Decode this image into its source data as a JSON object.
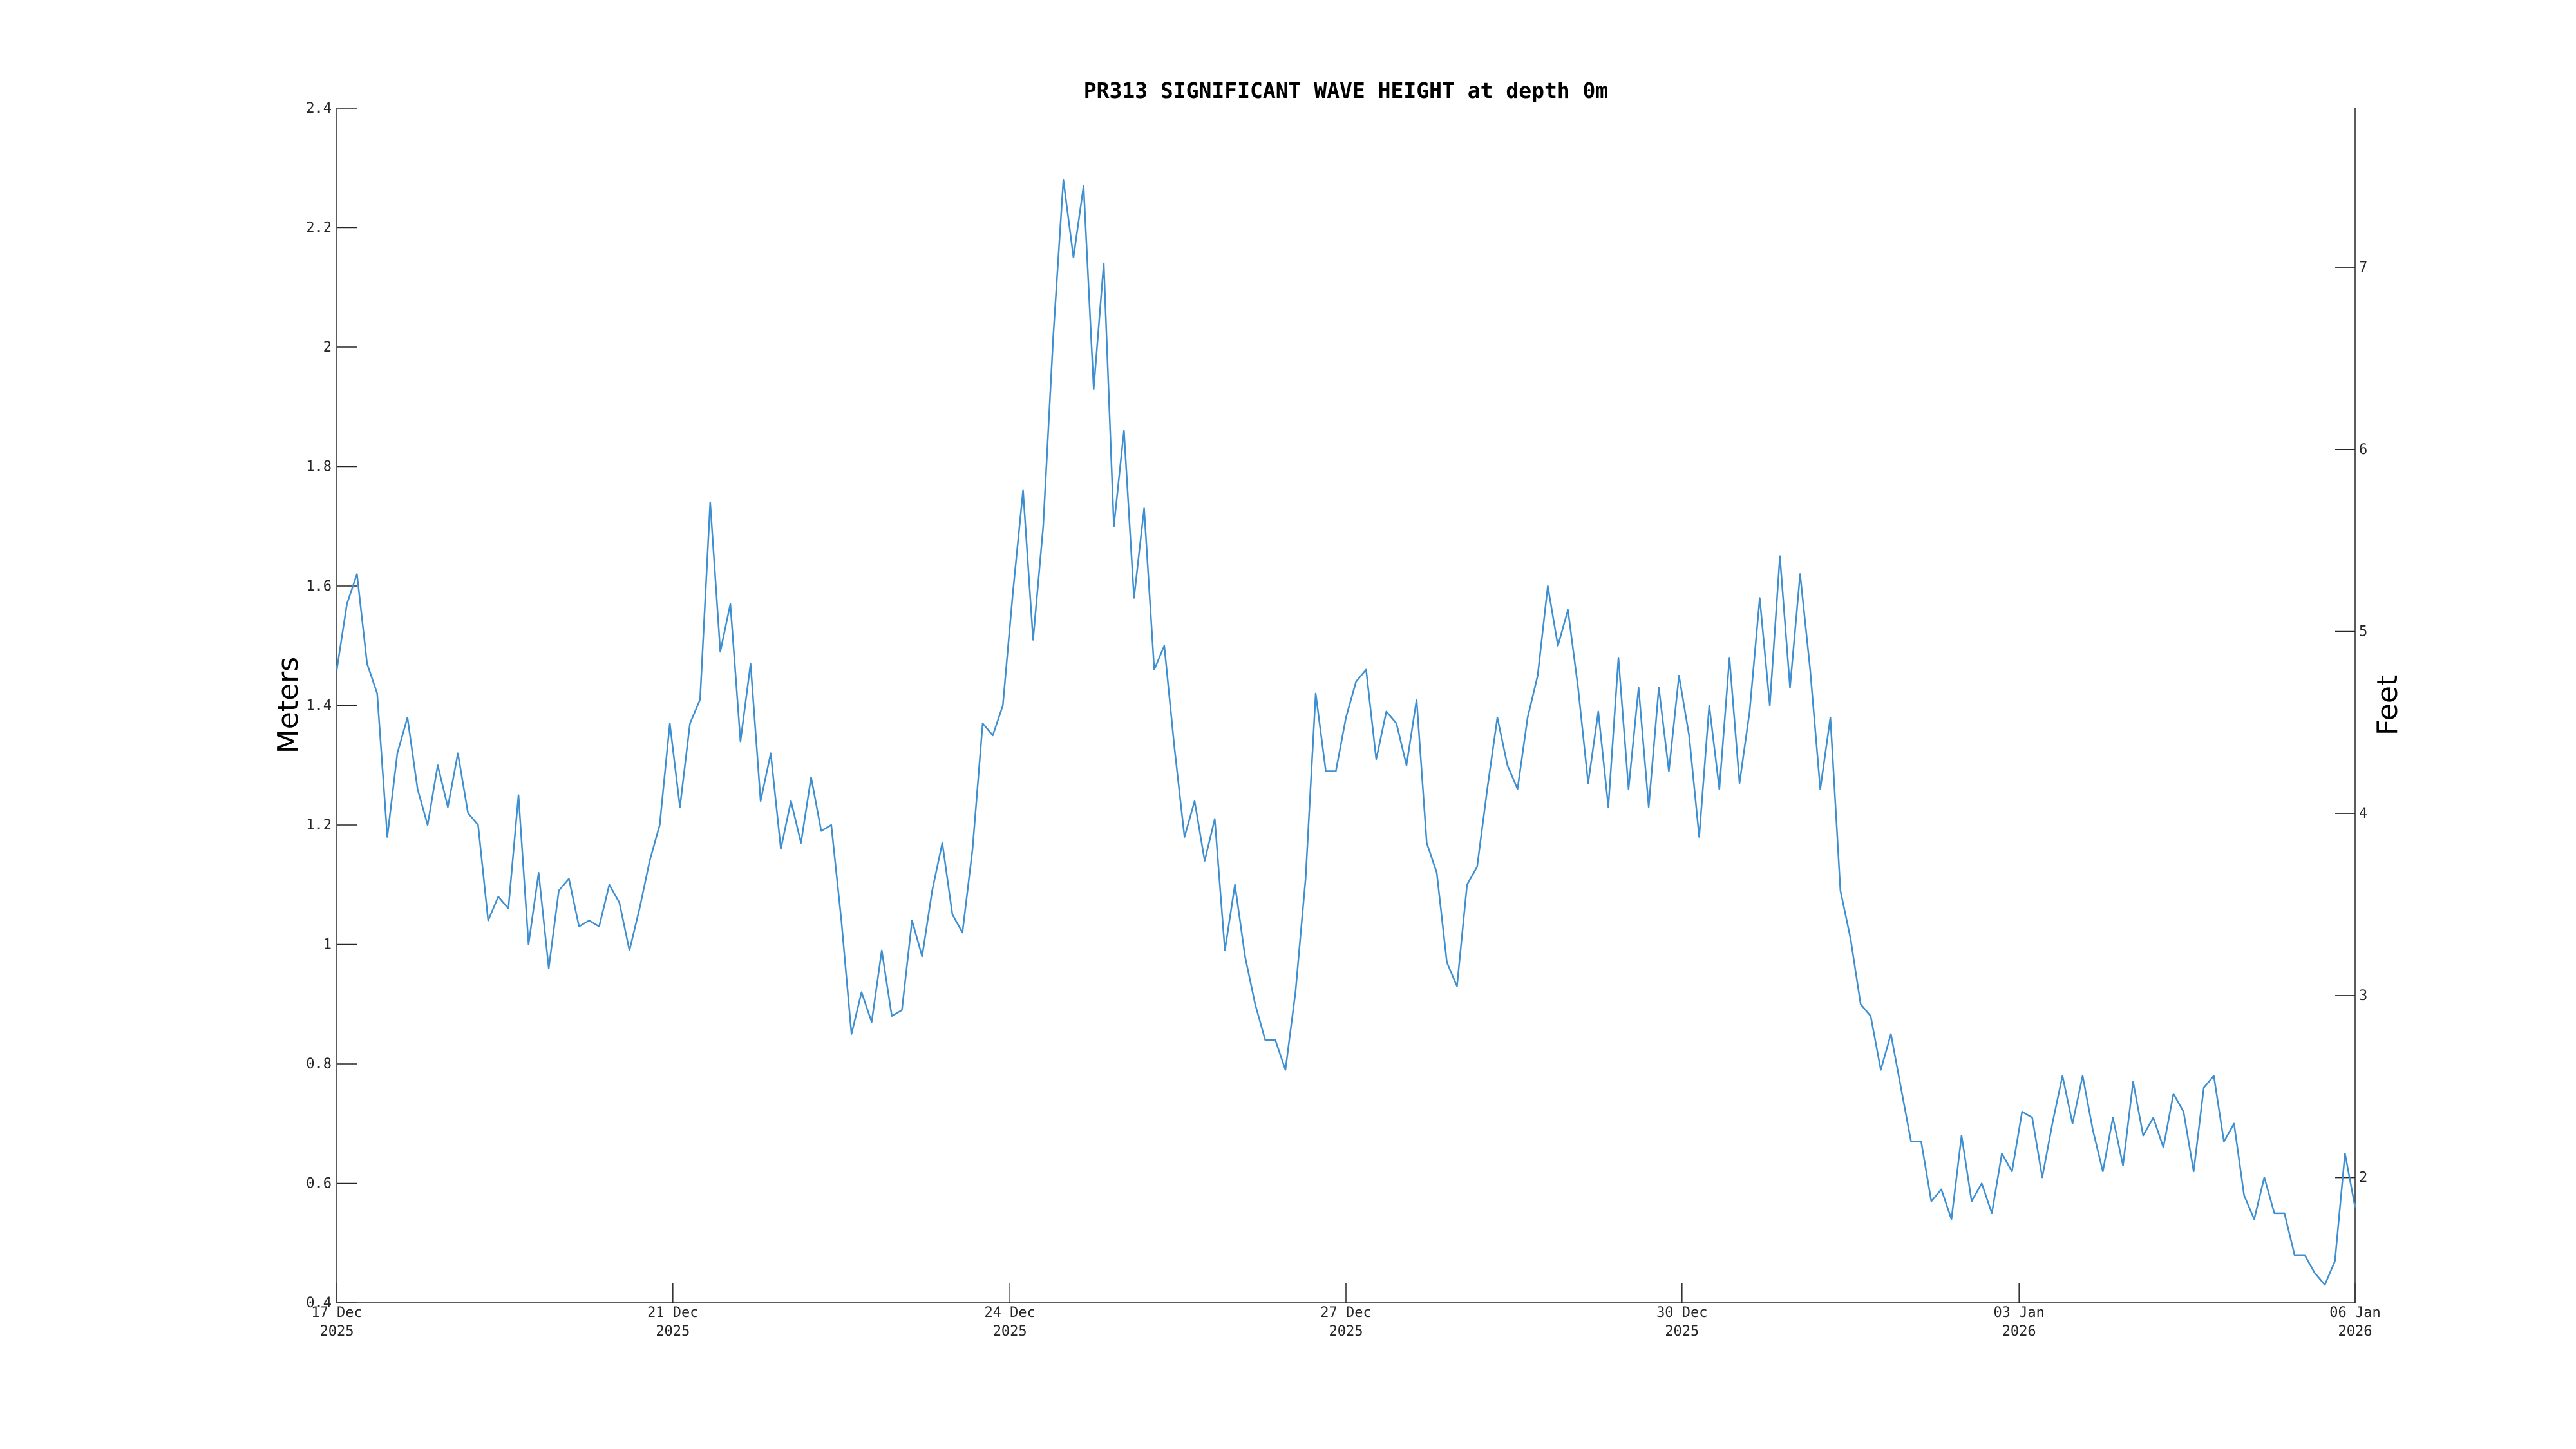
{
  "chart_data": {
    "type": "line",
    "title": "PR313 SIGNIFICANT WAVE HEIGHT at depth 0m",
    "ylabel": "Meters",
    "y2label": "Feet",
    "color": "#3d8fd1",
    "grid": false,
    "x": [
      0,
      0.1,
      0.2,
      0.3,
      0.4,
      0.5,
      0.6,
      0.7,
      0.8,
      0.9,
      1,
      1.1,
      1.2,
      1.3,
      1.4,
      1.5,
      1.6,
      1.7,
      1.8,
      1.9,
      2,
      2.1,
      2.2,
      2.3,
      2.4,
      2.5,
      2.6,
      2.7,
      2.8,
      2.9,
      3,
      3.1,
      3.2,
      3.3,
      3.4,
      3.5,
      3.6,
      3.7,
      3.8,
      3.9,
      4,
      4.1,
      4.2,
      4.3,
      4.4,
      4.5,
      4.6,
      4.7,
      4.8,
      4.9,
      5,
      5.1,
      5.2,
      5.3,
      5.4,
      5.5,
      5.6,
      5.7,
      5.8,
      5.9,
      6,
      6.1,
      6.2,
      6.3,
      6.4,
      6.5,
      6.6,
      6.7,
      6.8,
      6.9,
      7,
      7.1,
      7.2,
      7.3,
      7.4,
      7.5,
      7.6,
      7.7,
      7.8,
      7.9,
      8,
      8.1,
      8.2,
      8.3,
      8.4,
      8.5,
      8.6,
      8.7,
      8.8,
      8.9,
      9,
      9.1,
      9.2,
      9.3,
      9.4,
      9.5,
      9.6,
      9.7,
      9.8,
      9.9,
      10,
      10.1,
      10.2,
      10.3,
      10.4,
      10.5,
      10.6,
      10.7,
      10.8,
      10.9,
      11,
      11.1,
      11.2,
      11.3,
      11.4,
      11.5,
      11.6,
      11.7,
      11.8,
      11.9,
      12,
      12.1,
      12.2,
      12.3,
      12.4,
      12.5,
      12.6,
      12.7,
      12.8,
      12.9,
      13,
      13.1,
      13.2,
      13.3,
      13.4,
      13.5,
      13.6,
      13.7,
      13.8,
      13.9,
      14,
      14.1,
      14.2,
      14.3,
      14.4,
      14.5,
      14.6,
      14.7,
      14.8,
      14.9,
      15,
      15.1,
      15.2,
      15.3,
      15.4,
      15.5,
      15.6,
      15.7,
      15.8,
      15.9,
      16,
      16.1,
      16.2,
      16.3,
      16.4,
      16.5,
      16.6,
      16.7,
      16.8,
      16.9,
      17,
      17.1,
      17.2,
      17.3,
      17.4,
      17.5,
      17.6,
      17.7,
      17.8,
      17.9,
      18,
      18.1,
      18.2,
      18.3,
      18.4,
      18.5,
      18.6,
      18.7,
      18.8,
      18.9,
      19,
      19.1,
      19.2,
      19.3,
      19.4,
      19.5,
      19.6,
      19.7,
      19.8,
      19.9,
      20
    ],
    "values": [
      1.46,
      1.57,
      1.62,
      1.47,
      1.42,
      1.18,
      1.32,
      1.38,
      1.26,
      1.2,
      1.3,
      1.23,
      1.32,
      1.22,
      1.2,
      1.04,
      1.08,
      1.06,
      1.25,
      1.0,
      1.12,
      0.96,
      1.09,
      1.11,
      1.03,
      1.04,
      1.03,
      1.1,
      1.07,
      0.99,
      1.06,
      1.14,
      1.2,
      1.37,
      1.23,
      1.37,
      1.41,
      1.74,
      1.49,
      1.57,
      1.34,
      1.47,
      1.24,
      1.32,
      1.16,
      1.24,
      1.17,
      1.28,
      1.19,
      1.2,
      1.04,
      0.85,
      0.92,
      0.87,
      0.99,
      0.88,
      0.89,
      1.04,
      0.98,
      1.09,
      1.17,
      1.05,
      1.02,
      1.16,
      1.37,
      1.35,
      1.4,
      1.59,
      1.76,
      1.51,
      1.7,
      2.02,
      2.28,
      2.15,
      2.27,
      1.93,
      2.14,
      1.7,
      1.86,
      1.58,
      1.73,
      1.46,
      1.5,
      1.33,
      1.18,
      1.24,
      1.14,
      1.21,
      0.99,
      1.1,
      0.98,
      0.9,
      0.84,
      0.84,
      0.79,
      0.92,
      1.11,
      1.42,
      1.29,
      1.29,
      1.38,
      1.44,
      1.46,
      1.31,
      1.39,
      1.37,
      1.3,
      1.41,
      1.17,
      1.12,
      0.97,
      0.93,
      1.1,
      1.13,
      1.26,
      1.38,
      1.3,
      1.26,
      1.38,
      1.45,
      1.6,
      1.5,
      1.56,
      1.43,
      1.27,
      1.39,
      1.23,
      1.48,
      1.26,
      1.43,
      1.23,
      1.43,
      1.29,
      1.45,
      1.35,
      1.18,
      1.4,
      1.26,
      1.48,
      1.27,
      1.39,
      1.58,
      1.4,
      1.65,
      1.43,
      1.62,
      1.46,
      1.26,
      1.38,
      1.09,
      1.01,
      0.9,
      0.88,
      0.79,
      0.85,
      0.76,
      0.67,
      0.67,
      0.57,
      0.59,
      0.54,
      0.68,
      0.57,
      0.6,
      0.55,
      0.65,
      0.62,
      0.72,
      0.71,
      0.61,
      0.7,
      0.78,
      0.7,
      0.78,
      0.69,
      0.62,
      0.71,
      0.63,
      0.77,
      0.68,
      0.71,
      0.66,
      0.75,
      0.72,
      0.62,
      0.76,
      0.78,
      0.67,
      0.7,
      0.58,
      0.54,
      0.61,
      0.55,
      0.55,
      0.48,
      0.48,
      0.45,
      0.43,
      0.47,
      0.65,
      0.56
    ],
    "xlim": [
      0,
      20
    ],
    "xticks": [
      {
        "value": 0,
        "label": "17 Dec\n2025"
      },
      {
        "value": 3.33,
        "label": "21 Dec\n2025"
      },
      {
        "value": 6.67,
        "label": "24 Dec\n2025"
      },
      {
        "value": 10,
        "label": "27 Dec\n2025"
      },
      {
        "value": 13.33,
        "label": "30 Dec\n2025"
      },
      {
        "value": 16.67,
        "label": "03 Jan\n2026"
      },
      {
        "value": 20,
        "label": "06 Jan\n2026"
      }
    ],
    "ylim": [
      0.4,
      2.4
    ],
    "yticks": [
      0.4,
      0.6,
      0.8,
      1,
      1.2,
      1.4,
      1.6,
      1.8,
      2,
      2.2,
      2.4
    ],
    "y2lim": [
      1.3123,
      7.874
    ],
    "y2ticks": [
      2,
      3,
      4,
      5,
      6,
      7
    ]
  }
}
